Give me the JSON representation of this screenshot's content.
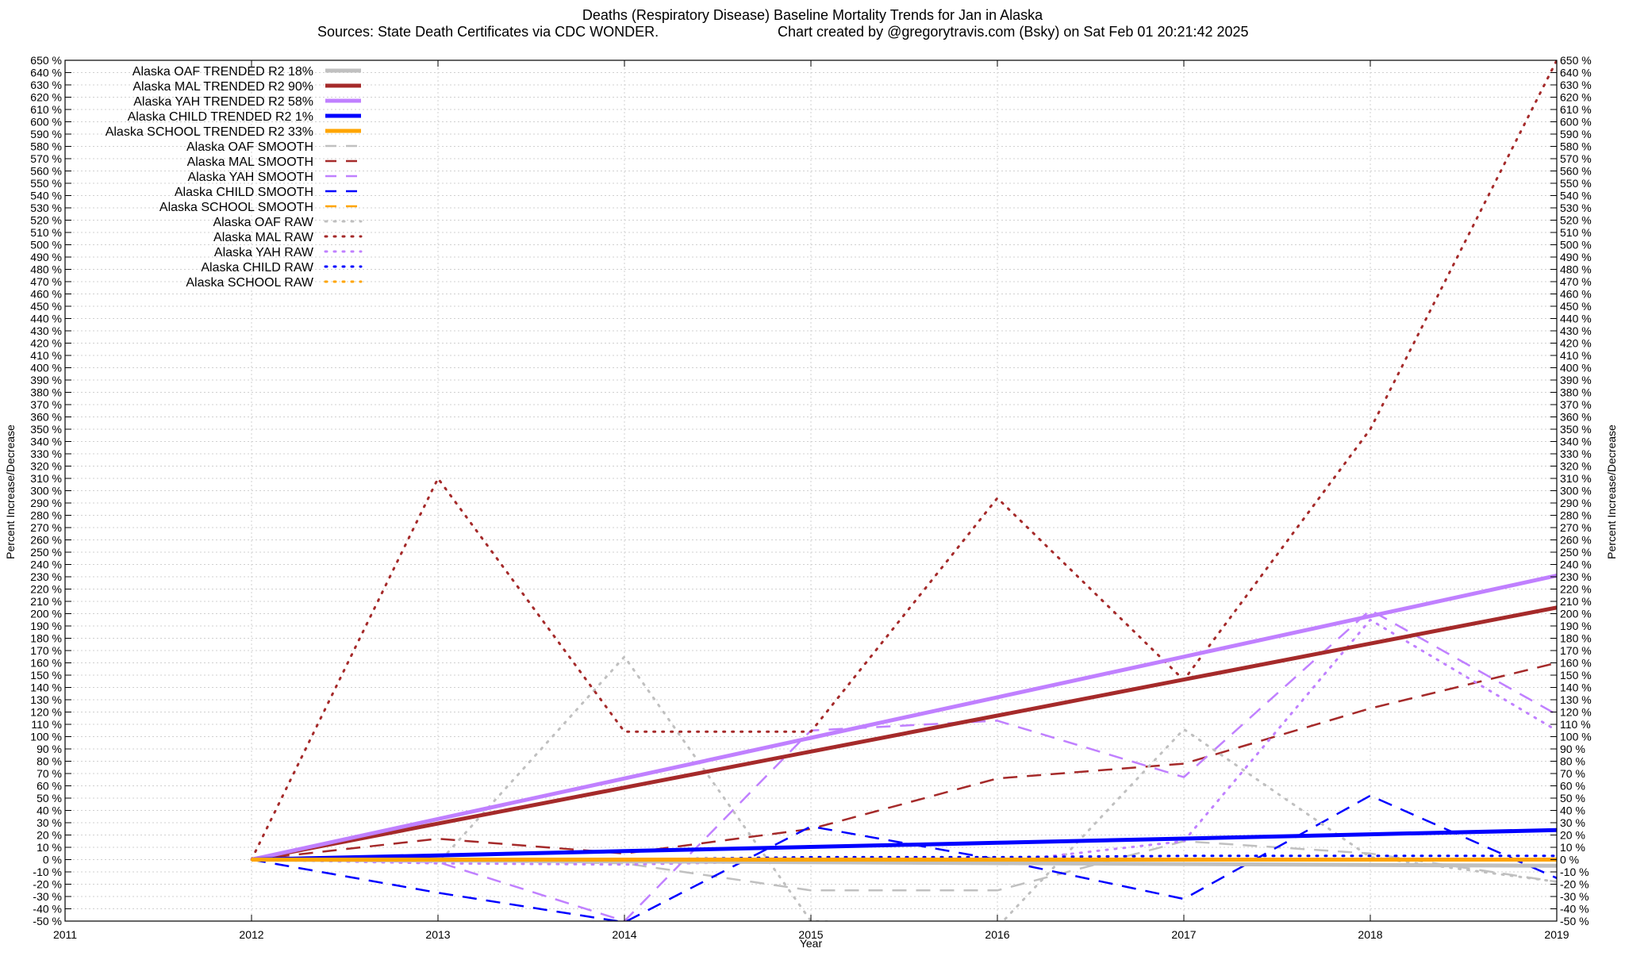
{
  "chart_data": {
    "type": "line",
    "title": "Deaths (Respiratory Disease)  Baseline Mortality Trends for Jan in Alaska",
    "subtitle_left": "Sources: State Death Certificates via CDC WONDER.",
    "subtitle_right": "Chart created by @gregorytravis.com (Bsky) on Sat Feb 01 20:21:42 2025",
    "xlabel": "Year",
    "ylabel_left": "Percent Increase/Decrease",
    "ylabel_right": "Percent Increase/Decrease",
    "xlim": [
      2011,
      2019
    ],
    "ylim": [
      -50,
      650
    ],
    "x_ticks": [
      2011,
      2012,
      2013,
      2014,
      2015,
      2016,
      2017,
      2018,
      2019
    ],
    "y_tick_step": 10,
    "y_tick_suffix": " %",
    "grid": true,
    "legend_position": "top-left",
    "x": [
      2012,
      2013,
      2014,
      2015,
      2016,
      2017,
      2018,
      2019
    ],
    "series": [
      {
        "name": "Alaska OAF TRENDED R2  18%",
        "style": "solid",
        "color": "#c0c0c0",
        "width": 5,
        "values": [
          0,
          -0.7,
          -1.4,
          -2.1,
          -2.9,
          -3.6,
          -4.3,
          -5
        ]
      },
      {
        "name": "Alaska MAL TRENDED R2  90%",
        "style": "solid",
        "color": "#a52a2a",
        "width": 5,
        "values": [
          0,
          29.3,
          58.6,
          87.9,
          117.1,
          146.4,
          175.7,
          205
        ]
      },
      {
        "name": "Alaska YAH TRENDED R2  58%",
        "style": "solid",
        "color": "#c080ff",
        "width": 5,
        "values": [
          0,
          33,
          66,
          99,
          132,
          165,
          198,
          231
        ]
      },
      {
        "name": "Alaska CHILD TRENDED R2   1%",
        "style": "solid",
        "color": "#0000ff",
        "width": 5,
        "values": [
          0,
          3.4,
          6.9,
          10.3,
          13.7,
          17.1,
          20.6,
          24
        ]
      },
      {
        "name": "Alaska SCHOOL TRENDED R2  33%",
        "style": "solid",
        "color": "#ffa500",
        "width": 5,
        "values": [
          0,
          0,
          0,
          0,
          0,
          0,
          0,
          0
        ]
      },
      {
        "name": "Alaska OAF SMOOTH",
        "style": "dashed",
        "color": "#c0c0c0",
        "width": 2.5,
        "values": [
          0,
          -1,
          -3,
          -25,
          -25,
          15,
          5,
          -18
        ]
      },
      {
        "name": "Alaska MAL SMOOTH",
        "style": "dashed",
        "color": "#a52a2a",
        "width": 2.5,
        "values": [
          0,
          17,
          5,
          25,
          66,
          78,
          123,
          160
        ]
      },
      {
        "name": "Alaska YAH SMOOTH",
        "style": "dashed",
        "color": "#c080ff",
        "width": 2.5,
        "values": [
          0,
          -2,
          -50,
          105,
          113,
          67,
          203,
          118
        ]
      },
      {
        "name": "Alaska CHILD SMOOTH",
        "style": "dashed",
        "color": "#0000ff",
        "width": 2.5,
        "values": [
          0,
          -27,
          -51,
          27,
          0,
          -32,
          52,
          -15
        ]
      },
      {
        "name": "Alaska SCHOOL SMOOTH",
        "style": "dashed",
        "color": "#ffa500",
        "width": 2.5,
        "values": [
          0,
          0,
          0,
          0,
          0,
          0,
          0,
          0
        ]
      },
      {
        "name": "Alaska OAF RAW",
        "style": "dotted",
        "color": "#c0c0c0",
        "width": 3,
        "values": [
          0,
          -3,
          165,
          -50,
          -55,
          106,
          2,
          -18
        ]
      },
      {
        "name": "Alaska MAL RAW",
        "style": "dotted",
        "color": "#a52a2a",
        "width": 3,
        "values": [
          0,
          310,
          104,
          104,
          294,
          146,
          350,
          650
        ]
      },
      {
        "name": "Alaska YAH RAW",
        "style": "dotted",
        "color": "#c080ff",
        "width": 3,
        "values": [
          0,
          -3,
          -4,
          -1,
          -2,
          15,
          195,
          105
        ]
      },
      {
        "name": "Alaska CHILD RAW",
        "style": "dotted",
        "color": "#0000ff",
        "width": 3,
        "values": [
          0,
          0,
          0,
          2,
          2,
          3,
          3,
          3
        ]
      },
      {
        "name": "Alaska SCHOOL RAW",
        "style": "dotted",
        "color": "#ffa500",
        "width": 3,
        "values": [
          0,
          0,
          0,
          0,
          0,
          0,
          0,
          0
        ]
      }
    ]
  }
}
